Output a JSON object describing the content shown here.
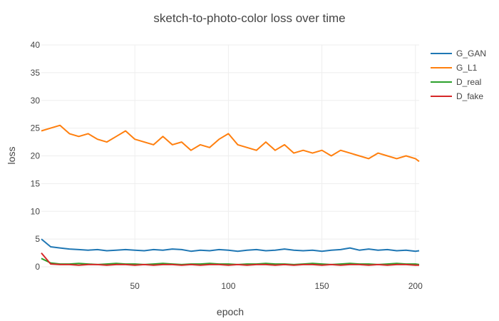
{
  "chart_data": {
    "type": "line",
    "title": "sketch-to-photo-color loss over time",
    "xlabel": "epoch",
    "ylabel": "loss",
    "xlim": [
      0,
      202
    ],
    "ylim": [
      0,
      40
    ],
    "xticks": [
      50,
      100,
      150,
      200
    ],
    "yticks": [
      0,
      5,
      10,
      15,
      20,
      25,
      30,
      35,
      40
    ],
    "grid": true,
    "legend_position": "top-right",
    "series": [
      {
        "name": "G_GAN",
        "color": "#1f77b4",
        "x": [
          0,
          5,
          10,
          15,
          20,
          25,
          30,
          35,
          40,
          45,
          50,
          55,
          60,
          65,
          70,
          75,
          80,
          85,
          90,
          95,
          100,
          105,
          110,
          115,
          120,
          125,
          130,
          135,
          140,
          145,
          150,
          155,
          160,
          165,
          170,
          175,
          180,
          185,
          190,
          195,
          200,
          202
        ],
        "y": [
          5.0,
          3.6,
          3.4,
          3.2,
          3.1,
          3.0,
          3.1,
          2.9,
          3.0,
          3.1,
          3.0,
          2.9,
          3.1,
          3.0,
          3.2,
          3.1,
          2.8,
          3.0,
          2.9,
          3.1,
          3.0,
          2.8,
          3.0,
          3.1,
          2.9,
          3.0,
          3.2,
          3.0,
          2.9,
          3.0,
          2.8,
          3.0,
          3.1,
          3.4,
          3.0,
          3.2,
          3.0,
          3.1,
          2.9,
          3.0,
          2.8,
          2.9
        ]
      },
      {
        "name": "G_L1",
        "color": "#ff7f0e",
        "x": [
          0,
          5,
          10,
          15,
          20,
          25,
          30,
          35,
          40,
          45,
          50,
          55,
          60,
          65,
          70,
          75,
          80,
          85,
          90,
          95,
          100,
          105,
          110,
          115,
          120,
          125,
          130,
          135,
          140,
          145,
          150,
          155,
          160,
          165,
          170,
          175,
          180,
          185,
          190,
          195,
          200,
          202
        ],
        "y": [
          24.5,
          25.0,
          25.5,
          24.0,
          23.5,
          24.0,
          23.0,
          22.5,
          23.5,
          24.5,
          23.0,
          22.5,
          22.0,
          23.5,
          22.0,
          22.5,
          21.0,
          22.0,
          21.5,
          23.0,
          24.0,
          22.0,
          21.5,
          21.0,
          22.5,
          21.0,
          22.0,
          20.5,
          21.0,
          20.5,
          21.0,
          20.0,
          21.0,
          20.5,
          20.0,
          19.5,
          20.5,
          20.0,
          19.5,
          20.0,
          19.5,
          19.0
        ]
      },
      {
        "name": "D_real",
        "color": "#2ca02c",
        "x": [
          0,
          5,
          10,
          15,
          20,
          25,
          30,
          35,
          40,
          45,
          50,
          55,
          60,
          65,
          70,
          75,
          80,
          85,
          90,
          95,
          100,
          105,
          110,
          115,
          120,
          125,
          130,
          135,
          140,
          145,
          150,
          155,
          160,
          165,
          170,
          175,
          180,
          185,
          190,
          195,
          200,
          202
        ],
        "y": [
          1.5,
          0.7,
          0.5,
          0.5,
          0.6,
          0.5,
          0.4,
          0.5,
          0.6,
          0.5,
          0.5,
          0.4,
          0.5,
          0.6,
          0.5,
          0.4,
          0.5,
          0.5,
          0.6,
          0.5,
          0.5,
          0.4,
          0.5,
          0.5,
          0.6,
          0.5,
          0.5,
          0.4,
          0.5,
          0.6,
          0.5,
          0.4,
          0.5,
          0.6,
          0.5,
          0.5,
          0.4,
          0.5,
          0.6,
          0.5,
          0.5,
          0.4
        ]
      },
      {
        "name": "D_fake",
        "color": "#d62728",
        "x": [
          0,
          5,
          10,
          15,
          20,
          25,
          30,
          35,
          40,
          45,
          50,
          55,
          60,
          65,
          70,
          75,
          80,
          85,
          90,
          95,
          100,
          105,
          110,
          115,
          120,
          125,
          130,
          135,
          140,
          145,
          150,
          155,
          160,
          165,
          170,
          175,
          180,
          185,
          190,
          195,
          200,
          202
        ],
        "y": [
          2.5,
          0.5,
          0.4,
          0.4,
          0.3,
          0.4,
          0.4,
          0.3,
          0.4,
          0.4,
          0.3,
          0.4,
          0.3,
          0.4,
          0.4,
          0.3,
          0.4,
          0.3,
          0.4,
          0.4,
          0.3,
          0.4,
          0.3,
          0.4,
          0.4,
          0.3,
          0.4,
          0.3,
          0.4,
          0.4,
          0.3,
          0.4,
          0.3,
          0.4,
          0.4,
          0.3,
          0.4,
          0.3,
          0.4,
          0.4,
          0.3,
          0.3
        ]
      }
    ]
  }
}
